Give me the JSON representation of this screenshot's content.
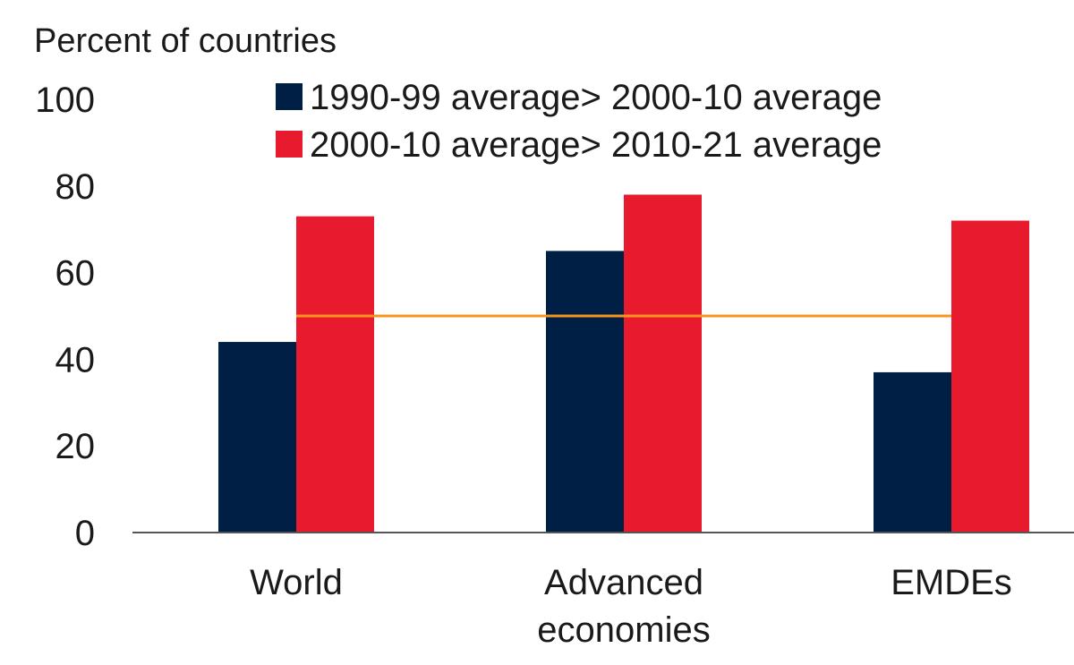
{
  "chart_data": {
    "type": "bar",
    "ylabel": "Percent of countries",
    "ylim": [
      0,
      100
    ],
    "yticks": [
      0,
      20,
      40,
      60,
      80,
      100
    ],
    "categories": [
      "World",
      "Advanced economies",
      "EMDEs"
    ],
    "category_lines": [
      [
        "World"
      ],
      [
        "Advanced",
        "economies"
      ],
      [
        "EMDEs"
      ]
    ],
    "series": [
      {
        "name": "1990-99 average> 2000-10 average",
        "color": "#001f45",
        "values": [
          44,
          65,
          37
        ]
      },
      {
        "name": "2000-10 average> 2010-21 average",
        "color": "#e81a2d",
        "values": [
          73,
          78,
          72
        ]
      }
    ],
    "reference_line": {
      "value": 50,
      "color": "#f7941d"
    },
    "legend_position": "top-center",
    "grid": false
  }
}
